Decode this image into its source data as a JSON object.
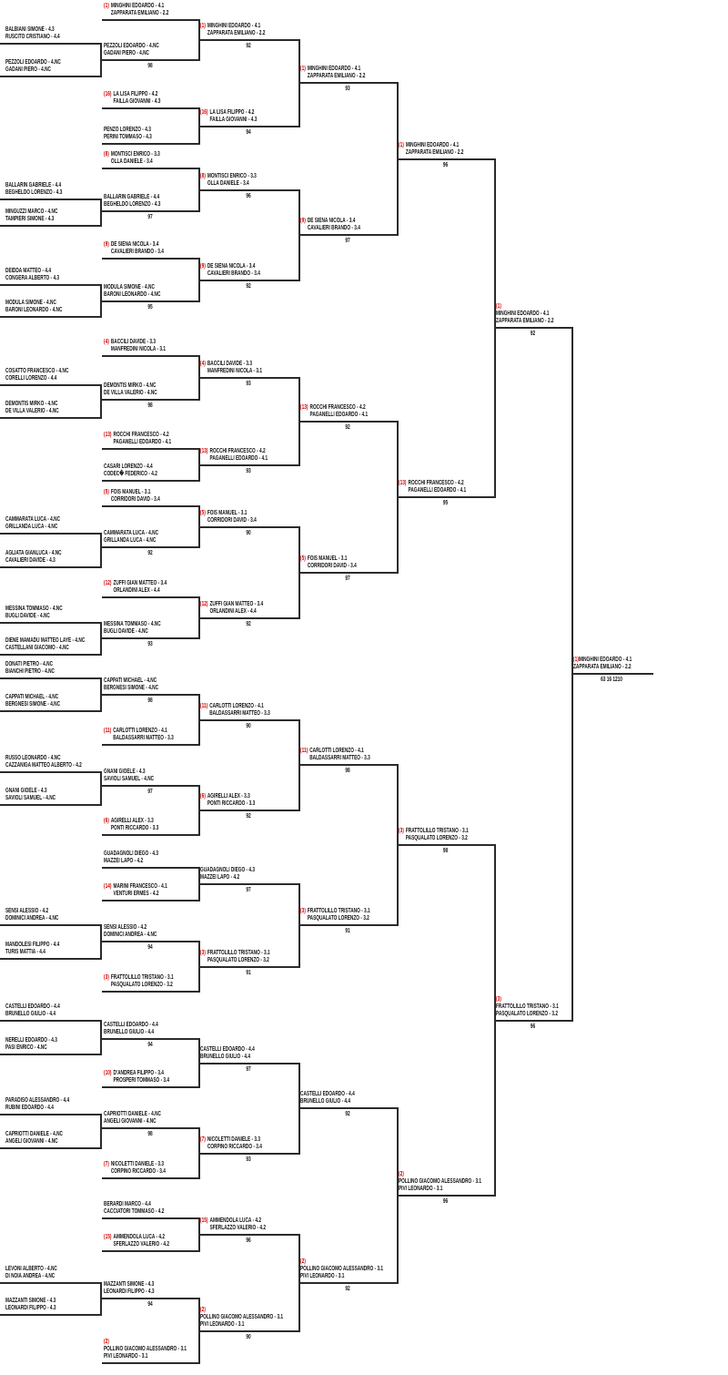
{
  "colors": {
    "seed_text": "#cc0000",
    "team_text": "#121212",
    "bracket_lines": "#2b2b2b",
    "background": "#ffffff"
  },
  "bracket": {
    "rounds": [
      {
        "id": "first-round",
        "entries": [
          {
            "seed": null,
            "lines": [
              "BALBIANI SIMONE - 4.3",
              "RUSCITO CRISTIANO - 4.4"
            ],
            "score": null
          },
          {
            "seed": null,
            "lines": [
              "PEZZOLI EDOARDO - 4.NC",
              "GADANI PIERO - 4.NC"
            ],
            "score": null
          },
          {
            "seed": null,
            "lines": [
              "BALLARIN GABRIELE - 4.4",
              "BEGHELDO LORENZO - 4.3"
            ],
            "score": null
          },
          {
            "seed": null,
            "lines": [
              "MINGUZZI MARCO - 4.NC",
              "TAMPIERI SIMONE - 4.3"
            ],
            "score": null
          },
          {
            "seed": null,
            "lines": [
              "DEIDDA MATTEO - 4.4",
              "CONGERA ALBERTO - 4.3"
            ],
            "score": null
          },
          {
            "seed": null,
            "lines": [
              "MODULA SIMONE - 4.NC",
              "BARONI LEONARDO - 4.NC"
            ],
            "score": null
          },
          {
            "seed": null,
            "lines": [
              "COSATTO FRANCESCO - 4.NC",
              "CORELLI LORENZO - 4.4"
            ],
            "score": null
          },
          {
            "seed": null,
            "lines": [
              "DEMONTIS MIRKO - 4.NC",
              "DE VILLA VALERIO - 4.NC"
            ],
            "score": null
          },
          {
            "seed": null,
            "lines": [
              "CAMMARATA LUCA - 4.NC",
              "GRILLANDA LUCA - 4.NC"
            ],
            "score": null
          },
          {
            "seed": null,
            "lines": [
              "AGLIATA GIANLUCA - 4.NC",
              "CAVALIERI DAVIDE - 4.3"
            ],
            "score": null
          },
          {
            "seed": null,
            "lines": [
              "MESSINA TOMMASO - 4.NC",
              "BUGLI DAVIDE - 4.NC"
            ],
            "score": null
          },
          {
            "seed": null,
            "lines": [
              "DIENE MAMADU MATTEO LAYE - 4.NC",
              "CASTELLANI GIACOMO - 4.NC"
            ],
            "score": null
          },
          {
            "seed": null,
            "lines": [
              "DONATI PIETRO - 4.NC",
              "BIANCHI PIETRO - 4.NC"
            ],
            "score": null
          },
          {
            "seed": null,
            "lines": [
              "CAPPATI MICHAEL - 4.NC",
              "BERGNESI SIMONE - 4.NC"
            ],
            "score": null
          },
          {
            "seed": null,
            "lines": [
              "RUSSO LEONARDO - 4.NC",
              "CAZZANIGA MATTEO ALBERTO - 4.2"
            ],
            "score": null
          },
          {
            "seed": null,
            "lines": [
              "GNANI GIOELE - 4.3",
              "SAVIOLI SAMUEL - 4.NC"
            ],
            "score": null
          },
          {
            "seed": null,
            "lines": [
              "SENSI ALESSIO - 4.2",
              "DOMINICI ANDREA - 4.NC"
            ],
            "score": null
          },
          {
            "seed": null,
            "lines": [
              "MANDOLESI FILIPPO - 4.4",
              "TURIS MATTIA - 4.4"
            ],
            "score": null
          },
          {
            "seed": null,
            "lines": [
              "CASTELLI EDOARDO - 4.4",
              "BRUNELLO GIULIO - 4.4"
            ],
            "score": null
          },
          {
            "seed": null,
            "lines": [
              "NERELLI EDOARDO - 4.3",
              "PASI ENRICO - 4.NC"
            ],
            "score": null
          },
          {
            "seed": null,
            "lines": [
              "PARADISO ALESSANDRO - 4.4",
              "RUBINI EDOARDO - 4.4"
            ],
            "score": null
          },
          {
            "seed": null,
            "lines": [
              "CAPRIOTTI DANIELE - 4.NC",
              "ANGELI GIOVANNI - 4.NC"
            ],
            "score": null
          },
          {
            "seed": null,
            "lines": [
              "LEVONI ALBERTO - 4.NC",
              "DI NOIA ANDREA - 4.NC"
            ],
            "score": null
          },
          {
            "seed": null,
            "lines": [
              "MAZZANTI SIMONE - 4.3",
              "LEONARDI FILIPPO - 4.3"
            ],
            "score": null
          }
        ]
      },
      {
        "id": "second-round",
        "entries": [
          {
            "seed": "(1)",
            "lines": [
              "MINGHINI EDOARDO - 4.1",
              "ZAPPARATA EMILIANO - 2.2"
            ],
            "score": null
          },
          {
            "seed": null,
            "lines": [
              "PEZZOLI EDOARDO - 4.NC",
              "GADANI PIERO - 4.NC"
            ],
            "score": "98"
          },
          {
            "seed": "(16)",
            "lines": [
              "LA LISA FILIPPO - 4.2",
              "FAILLA GIOVANNI - 4.3"
            ],
            "score": null
          },
          {
            "seed": null,
            "lines": [
              "PENZO LORENZO - 4.3",
              "PERINI TOMMASO - 4.3"
            ],
            "score": null
          },
          {
            "seed": "(8)",
            "lines": [
              "MONTISCI ENRICO - 3.3",
              "OLLA DANIELE - 3.4"
            ],
            "score": null
          },
          {
            "seed": null,
            "lines": [
              "BALLARIN GABRIELE - 4.4",
              "BEGHELDO LORENZO - 4.3"
            ],
            "score": "97"
          },
          {
            "seed": "(9)",
            "lines": [
              "DE SIENA NICOLA - 3.4",
              "CAVALIERI BRANDO - 3.4"
            ],
            "score": null
          },
          {
            "seed": null,
            "lines": [
              "MODULA SIMONE - 4.NC",
              "BARONI LEONARDO - 4.NC"
            ],
            "score": "95"
          },
          {
            "seed": "(4)",
            "lines": [
              "BACCILI DAVIDE - 3.3",
              "MANFREDINI NICOLA - 3.1"
            ],
            "score": null
          },
          {
            "seed": null,
            "lines": [
              "DEMONTIS MIRKO - 4.NC",
              "DE VILLA VALERIO - 4.NC"
            ],
            "score": "98"
          },
          {
            "seed": "(13)",
            "lines": [
              "ROCCHI FRANCESCO - 4.2",
              "PAGANELLI EDOARDO - 4.1"
            ],
            "score": null
          },
          {
            "seed": null,
            "lines": [
              "CASARI LORENZO - 4.4",
              "CODEC� FEDERICO - 4.2"
            ],
            "score": null
          },
          {
            "seed": "(5)",
            "lines": [
              "FOIS MANUEL - 3.1",
              "CORRIDORI DAVID - 3.4"
            ],
            "score": null
          },
          {
            "seed": null,
            "lines": [
              "CAMMARATA LUCA - 4.NC",
              "GRILLANDA LUCA - 4.NC"
            ],
            "score": "92"
          },
          {
            "seed": "(12)",
            "lines": [
              "ZUFFI GIAN MATTEO - 3.4",
              "ORLANDINI ALEX - 4.4"
            ],
            "score": null
          },
          {
            "seed": null,
            "lines": [
              "MESSINA TOMMASO - 4.NC",
              "BUGLI DAVIDE - 4.NC"
            ],
            "score": "93"
          },
          {
            "seed": null,
            "lines": [
              "CAPPATI MICHAEL - 4.NC",
              "BERGNESI SIMONE - 4.NC"
            ],
            "score": "98"
          },
          {
            "seed": "(11)",
            "lines": [
              "CARLOTTI LORENZO - 4.1",
              "BALDASSARRI MATTEO - 3.3"
            ],
            "score": null
          },
          {
            "seed": null,
            "lines": [
              "GNANI GIOELE - 4.3",
              "SAVIOLI SAMUEL - 4.NC"
            ],
            "score": "97"
          },
          {
            "seed": "(6)",
            "lines": [
              "AGIRELLI ALEX - 3.3",
              "PONTI RICCARDO - 3.3"
            ],
            "score": null
          },
          {
            "seed": null,
            "lines": [
              "GUADAGNOLI DIEGO - 4.3",
              "MAZZEI LAPO - 4.2"
            ],
            "score": null
          },
          {
            "seed": "(14)",
            "lines": [
              "MARINI FRANCESCO - 4.1",
              "VENTURI ERMES - 4.2"
            ],
            "score": null
          },
          {
            "seed": null,
            "lines": [
              "SENSI ALESSIO - 4.2",
              "DOMINICI ANDREA - 4.NC"
            ],
            "score": "94"
          },
          {
            "seed": "(3)",
            "lines": [
              "FRATTOLILLO TRISTANO - 3.1",
              "PASQUALATO LORENZO - 3.2"
            ],
            "score": null
          },
          {
            "seed": null,
            "lines": [
              "CASTELLI EDOARDO - 4.4",
              "BRUNELLO GIULIO - 4.4"
            ],
            "score": "94"
          },
          {
            "seed": "(10)",
            "lines": [
              "D'ANDREA FILIPPO - 3.4",
              "PROSPERI TOMMASO - 3.4"
            ],
            "score": null
          },
          {
            "seed": null,
            "lines": [
              "CAPRIOTTI DANIELE - 4.NC",
              "ANGELI GIOVANNI - 4.NC"
            ],
            "score": "98"
          },
          {
            "seed": "(7)",
            "lines": [
              "NICOLETTI DANIELE - 3.3",
              "CORPINO RICCARDO - 3.4"
            ],
            "score": null
          },
          {
            "seed": null,
            "lines": [
              "BERARDI MARCO - 4.4",
              "CACCIATORI TOMMASO - 4.2"
            ],
            "score": null
          },
          {
            "seed": "(15)",
            "lines": [
              "AMMENDOLA LUCA - 4.2",
              "SFERLAZZO VALERIO - 4.2"
            ],
            "score": null
          },
          {
            "seed": null,
            "lines": [
              "MAZZANTI SIMONE - 4.3",
              "LEONARDI FILIPPO - 4.3"
            ],
            "score": "94"
          },
          {
            "seed": "(2)",
            "lines": [
              "POLLINO GIACOMO ALESSANDRO - 3.1",
              "PIVI LEONARDO - 3.1"
            ],
            "score": null
          }
        ]
      },
      {
        "id": "round-of-16",
        "entries": [
          {
            "seed": "(1)",
            "lines": [
              "MINGHINI EDOARDO - 4.1",
              "ZAPPARATA EMILIANO - 2.2"
            ],
            "score": "92"
          },
          {
            "seed": "(16)",
            "lines": [
              "LA LISA FILIPPO - 4.2",
              "FAILLA GIOVANNI - 4.3"
            ],
            "score": "94"
          },
          {
            "seed": "(8)",
            "lines": [
              "MONTISCI ENRICO - 3.3",
              "OLLA DANIELE - 3.4"
            ],
            "score": "96"
          },
          {
            "seed": "(9)",
            "lines": [
              "DE SIENA NICOLA - 3.4",
              "CAVALIERI BRANDO - 3.4"
            ],
            "score": "92"
          },
          {
            "seed": "(4)",
            "lines": [
              "BACCILI DAVIDE - 3.3",
              "MANFREDINI NICOLA - 3.1"
            ],
            "score": "93"
          },
          {
            "seed": "(13)",
            "lines": [
              "ROCCHI FRANCESCO - 4.2",
              "PAGANELLI EDOARDO - 4.1"
            ],
            "score": "93"
          },
          {
            "seed": "(5)",
            "lines": [
              "FOIS MANUEL - 3.1",
              "CORRIDORI DAVID - 3.4"
            ],
            "score": "90"
          },
          {
            "seed": "(12)",
            "lines": [
              "ZUFFI GIAN MATTEO - 3.4",
              "ORLANDINI ALEX - 4.4"
            ],
            "score": "92"
          },
          {
            "seed": "(11)",
            "lines": [
              "CARLOTTI LORENZO - 4.1",
              "BALDASSARRI MATTEO - 3.3"
            ],
            "score": "90"
          },
          {
            "seed": "(6)",
            "lines": [
              "AGIRELLI ALEX - 3.3",
              "PONTI RICCARDO - 3.3"
            ],
            "score": "92"
          },
          {
            "seed": null,
            "lines": [
              "GUADAGNOLI DIEGO - 4.3",
              "MAZZEI LAPO - 4.2"
            ],
            "score": "97"
          },
          {
            "seed": "(3)",
            "lines": [
              "FRATTOLILLO TRISTANO - 3.1",
              "PASQUALATO LORENZO - 3.2"
            ],
            "score": "91"
          },
          {
            "seed": null,
            "lines": [
              "CASTELLI EDOARDO - 4.4",
              "BRUNELLO GIULIO - 4.4"
            ],
            "score": "97"
          },
          {
            "seed": "(7)",
            "lines": [
              "NICOLETTI DANIELE - 3.3",
              "CORPINO RICCARDO - 3.4"
            ],
            "score": "93"
          },
          {
            "seed": "(15)",
            "lines": [
              "AMMENDOLA LUCA - 4.2",
              "SFERLAZZO VALERIO - 4.2"
            ],
            "score": "96"
          },
          {
            "seed": "(2)",
            "lines": [
              "POLLINO GIACOMO ALESSANDRO - 3.1",
              "PIVI LEONARDO - 3.1"
            ],
            "score": "90"
          }
        ]
      },
      {
        "id": "quarterfinals",
        "entries": [
          {
            "seed": "(1)",
            "lines": [
              "MINGHINI EDOARDO - 4.1",
              "ZAPPARATA EMILIANO - 2.2"
            ],
            "score": "93"
          },
          {
            "seed": "(9)",
            "lines": [
              "DE SIENA NICOLA - 3.4",
              "CAVALIERI BRANDO - 3.4"
            ],
            "score": "97"
          },
          {
            "seed": "(13)",
            "lines": [
              "ROCCHI FRANCESCO - 4.2",
              "PAGANELLI EDOARDO - 4.1"
            ],
            "score": "92"
          },
          {
            "seed": "(5)",
            "lines": [
              "FOIS MANUEL - 3.1",
              "CORRIDORI DAVID - 3.4"
            ],
            "score": "97"
          },
          {
            "seed": "(11)",
            "lines": [
              "CARLOTTI LORENZO - 4.1",
              "BALDASSARRI MATTEO - 3.3"
            ],
            "score": "98"
          },
          {
            "seed": "(3)",
            "lines": [
              "FRATTOLILLO TRISTANO - 3.1",
              "PASQUALATO LORENZO - 3.2"
            ],
            "score": "91"
          },
          {
            "seed": null,
            "lines": [
              "CASTELLI EDOARDO - 4.4",
              "BRUNELLO GIULIO - 4.4"
            ],
            "score": "92"
          },
          {
            "seed": "(2)",
            "lines": [
              "POLLINO GIACOMO ALESSANDRO - 3.1",
              "PIVI LEONARDO - 3.1"
            ],
            "score": "92"
          }
        ]
      },
      {
        "id": "semifinals",
        "entries": [
          {
            "seed": "(1)",
            "lines": [
              "MINGHINI EDOARDO - 4.1",
              "ZAPPARATA EMILIANO - 2.2"
            ],
            "score": "96"
          },
          {
            "seed": "(13)",
            "lines": [
              "ROCCHI FRANCESCO - 4.2",
              "PAGANELLI EDOARDO - 4.1"
            ],
            "score": "95"
          },
          {
            "seed": "(3)",
            "lines": [
              "FRATTOLILLO TRISTANO - 3.1",
              "PASQUALATO LORENZO - 3.2"
            ],
            "score": "98"
          },
          {
            "seed": "(2)",
            "lines": [
              "POLLINO GIACOMO ALESSANDRO - 3.1",
              "PIVI LEONARDO - 3.1"
            ],
            "score": "96"
          }
        ]
      },
      {
        "id": "final",
        "entries": [
          {
            "seed": "(1)",
            "lines": [
              "MINGHINI EDOARDO - 4.1",
              "ZAPPARATA EMILIANO - 2.2"
            ],
            "score": "92"
          },
          {
            "seed": "(3)",
            "lines": [
              "FRATTOLILLO TRISTANO - 3.1",
              "PASQUALATO LORENZO - 3.2"
            ],
            "score": "96"
          }
        ]
      },
      {
        "id": "champion",
        "entries": [
          {
            "seed": "(1)",
            "lines": [
              "MINGHINI EDOARDO - 4.1",
              "ZAPPARATA EMILIANO - 2.2"
            ],
            "score": "63 16 1210"
          }
        ]
      }
    ]
  }
}
